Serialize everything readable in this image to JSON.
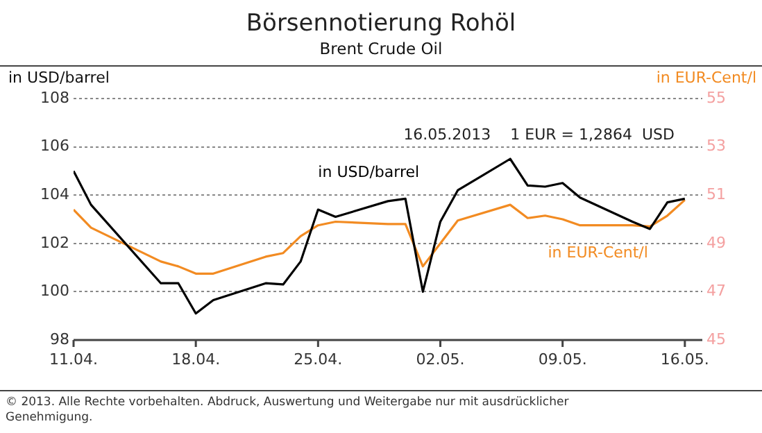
{
  "chart_data": {
    "type": "line",
    "title": "Börsennotierung Rohöl",
    "subtitle": "Brent Crude Oil",
    "ylabel": "in USD/barrel",
    "y2label": "in EUR-Cent/l",
    "x": [
      "2013-04-11",
      "2013-04-12",
      "2013-04-16",
      "2013-04-17",
      "2013-04-18",
      "2013-04-19",
      "2013-04-22",
      "2013-04-23",
      "2013-04-24",
      "2013-04-25",
      "2013-04-26",
      "2013-04-29",
      "2013-04-30",
      "2013-05-01",
      "2013-05-02",
      "2013-05-03",
      "2013-05-06",
      "2013-05-07",
      "2013-05-08",
      "2013-05-09",
      "2013-05-10",
      "2013-05-13",
      "2013-05-14",
      "2013-05-15",
      "2013-05-16"
    ],
    "series": [
      {
        "name": "in USD/barrel",
        "color": "#000000",
        "values": [
          105.0,
          103.6,
          100.35,
          100.35,
          99.1,
          99.65,
          100.35,
          100.3,
          101.25,
          103.4,
          103.1,
          103.75,
          103.85,
          100.0,
          102.9,
          104.2,
          105.5,
          104.4,
          104.35,
          104.5,
          103.9,
          102.9,
          102.6,
          103.7,
          103.85
        ]
      },
      {
        "name": "in EUR-Cent/l",
        "color": "#f28b22",
        "axis": "y2",
        "values": [
          50.4,
          49.65,
          48.25,
          48.05,
          47.75,
          47.75,
          48.45,
          48.6,
          49.3,
          49.75,
          49.9,
          49.8,
          49.8,
          48.05,
          49.0,
          49.95,
          50.6,
          50.05,
          50.15,
          50.0,
          49.75,
          49.75,
          49.7,
          50.15,
          50.8
        ]
      }
    ],
    "xlim": [
      "2013-04-11",
      "2013-05-17"
    ],
    "xticks": [
      {
        "value": "2013-04-11",
        "label": "11.04."
      },
      {
        "value": "2013-04-18",
        "label": "18.04."
      },
      {
        "value": "2013-04-25",
        "label": "25.04."
      },
      {
        "value": "2013-05-02",
        "label": "02.05."
      },
      {
        "value": "2013-05-09",
        "label": "09.05."
      },
      {
        "value": "2013-05-16",
        "label": "16.05."
      }
    ],
    "ylim": [
      98,
      108
    ],
    "yticks": [
      98,
      100,
      102,
      104,
      106,
      108
    ],
    "y2lim": [
      45,
      55
    ],
    "y2ticks": [
      45,
      47,
      49,
      51,
      53,
      55
    ],
    "grid": "y",
    "legend": false,
    "marker": "none",
    "line_style": "solid",
    "annotations": [
      "16.05.2013    1 EUR = 1,2864  USD",
      "© 2013.  Alle Rechte vorbehalten. Abdruck, Auswertung und Weitergabe nur mit ausdrücklicher Genehmigung."
    ]
  }
}
